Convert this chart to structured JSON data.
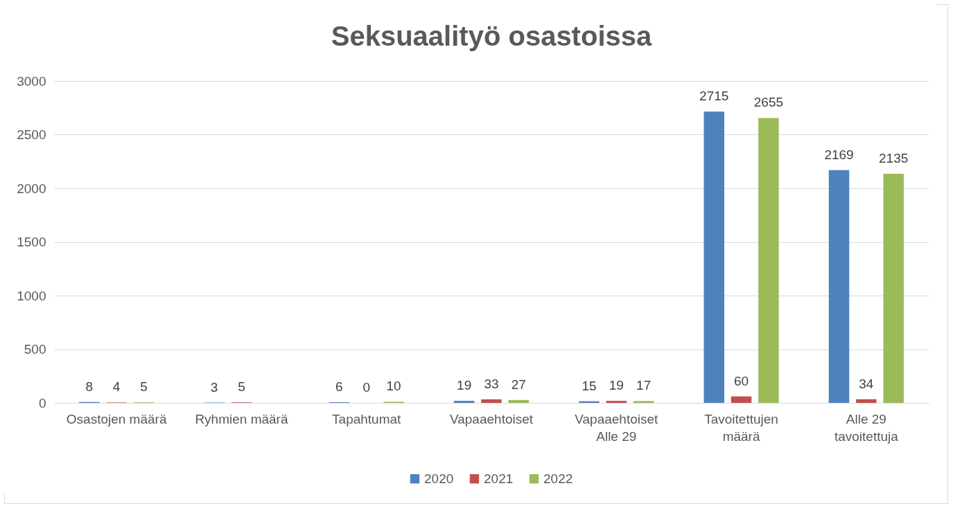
{
  "chart_data": {
    "type": "bar",
    "title": "Seksuaalityö osastoissa",
    "categories": [
      "Osastojen määrä",
      "Ryhmien määrä",
      "Tapahtumat",
      "Vapaaehtoiset",
      "Vapaaehtoiset Alle 29",
      "Tavoitettujen määrä",
      "Alle 29 tavoitettuja"
    ],
    "series": [
      {
        "name": "2020",
        "color": "#4f81bd",
        "values": [
          8,
          3,
          6,
          19,
          15,
          2715,
          2169
        ]
      },
      {
        "name": "2021",
        "color": "#c0504d",
        "values": [
          4,
          5,
          0,
          33,
          19,
          60,
          34
        ]
      },
      {
        "name": "2022",
        "color": "#9bbb59",
        "values": [
          5,
          null,
          10,
          27,
          17,
          2655,
          2135
        ]
      }
    ],
    "ylim": [
      0,
      3000
    ],
    "yticks": [
      0,
      500,
      1000,
      1500,
      2000,
      2500,
      3000
    ],
    "grid": "y",
    "legend": "bottom",
    "data_labels": true
  }
}
